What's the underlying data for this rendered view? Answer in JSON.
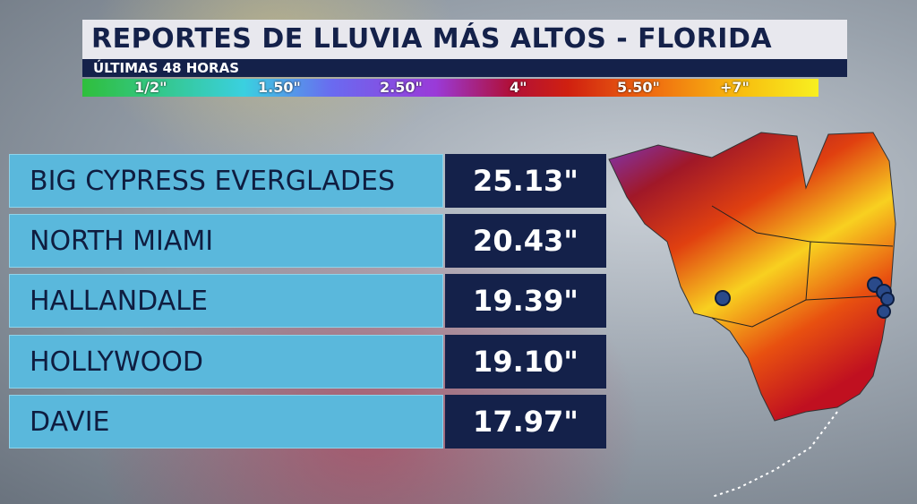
{
  "header": {
    "title": "REPORTES DE LLUVIA MÁS ALTOS - FLORIDA",
    "subtitle": "ÚLTIMAS 48 HORAS"
  },
  "legend": {
    "labels": [
      "1/2\"",
      "1.50\"",
      "2.50\"",
      "4\"",
      "5.50\"",
      "+7\""
    ]
  },
  "table": {
    "rows": [
      [
        "BIG CYPRESS EVERGLADES",
        "25.13\""
      ],
      [
        "NORTH MIAMI",
        "20.43\""
      ],
      [
        "HALLANDALE",
        "19.39\""
      ],
      [
        "HOLLYWOOD",
        "19.10\""
      ],
      [
        "DAVIE",
        "17.97\""
      ]
    ]
  }
}
